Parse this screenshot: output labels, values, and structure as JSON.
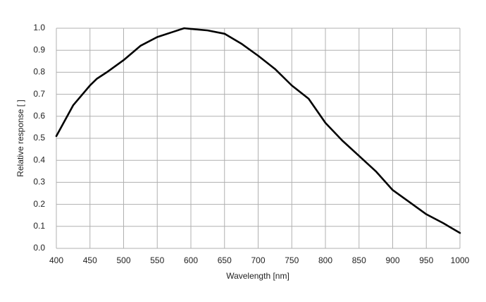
{
  "chart_data": {
    "type": "line",
    "xlabel": "Wavelength [nm]",
    "ylabel": "Relative response [ ]",
    "x": [
      400,
      425,
      450,
      460,
      475,
      500,
      525,
      550,
      575,
      590,
      600,
      625,
      650,
      675,
      700,
      725,
      750,
      775,
      800,
      825,
      850,
      875,
      900,
      925,
      950,
      975,
      1000
    ],
    "values": [
      0.51,
      0.65,
      0.74,
      0.77,
      0.8,
      0.855,
      0.92,
      0.96,
      0.985,
      1.0,
      0.997,
      0.99,
      0.975,
      0.93,
      0.875,
      0.815,
      0.74,
      0.68,
      0.57,
      0.49,
      0.42,
      0.35,
      0.265,
      0.21,
      0.155,
      0.115,
      0.07
    ],
    "color": "#000000",
    "xlim": [
      400,
      1000
    ],
    "xticks": [
      400,
      450,
      500,
      550,
      600,
      650,
      700,
      750,
      800,
      850,
      900,
      950,
      1000
    ],
    "ylim": [
      0,
      1
    ],
    "yticks": [
      {
        "value": 0,
        "label": "0.0"
      },
      0.1,
      0.2,
      0.3,
      0.4,
      0.5,
      0.6,
      0.7,
      0.8,
      0.9,
      {
        "value": 1,
        "label": "1.0"
      }
    ],
    "grid": true
  }
}
